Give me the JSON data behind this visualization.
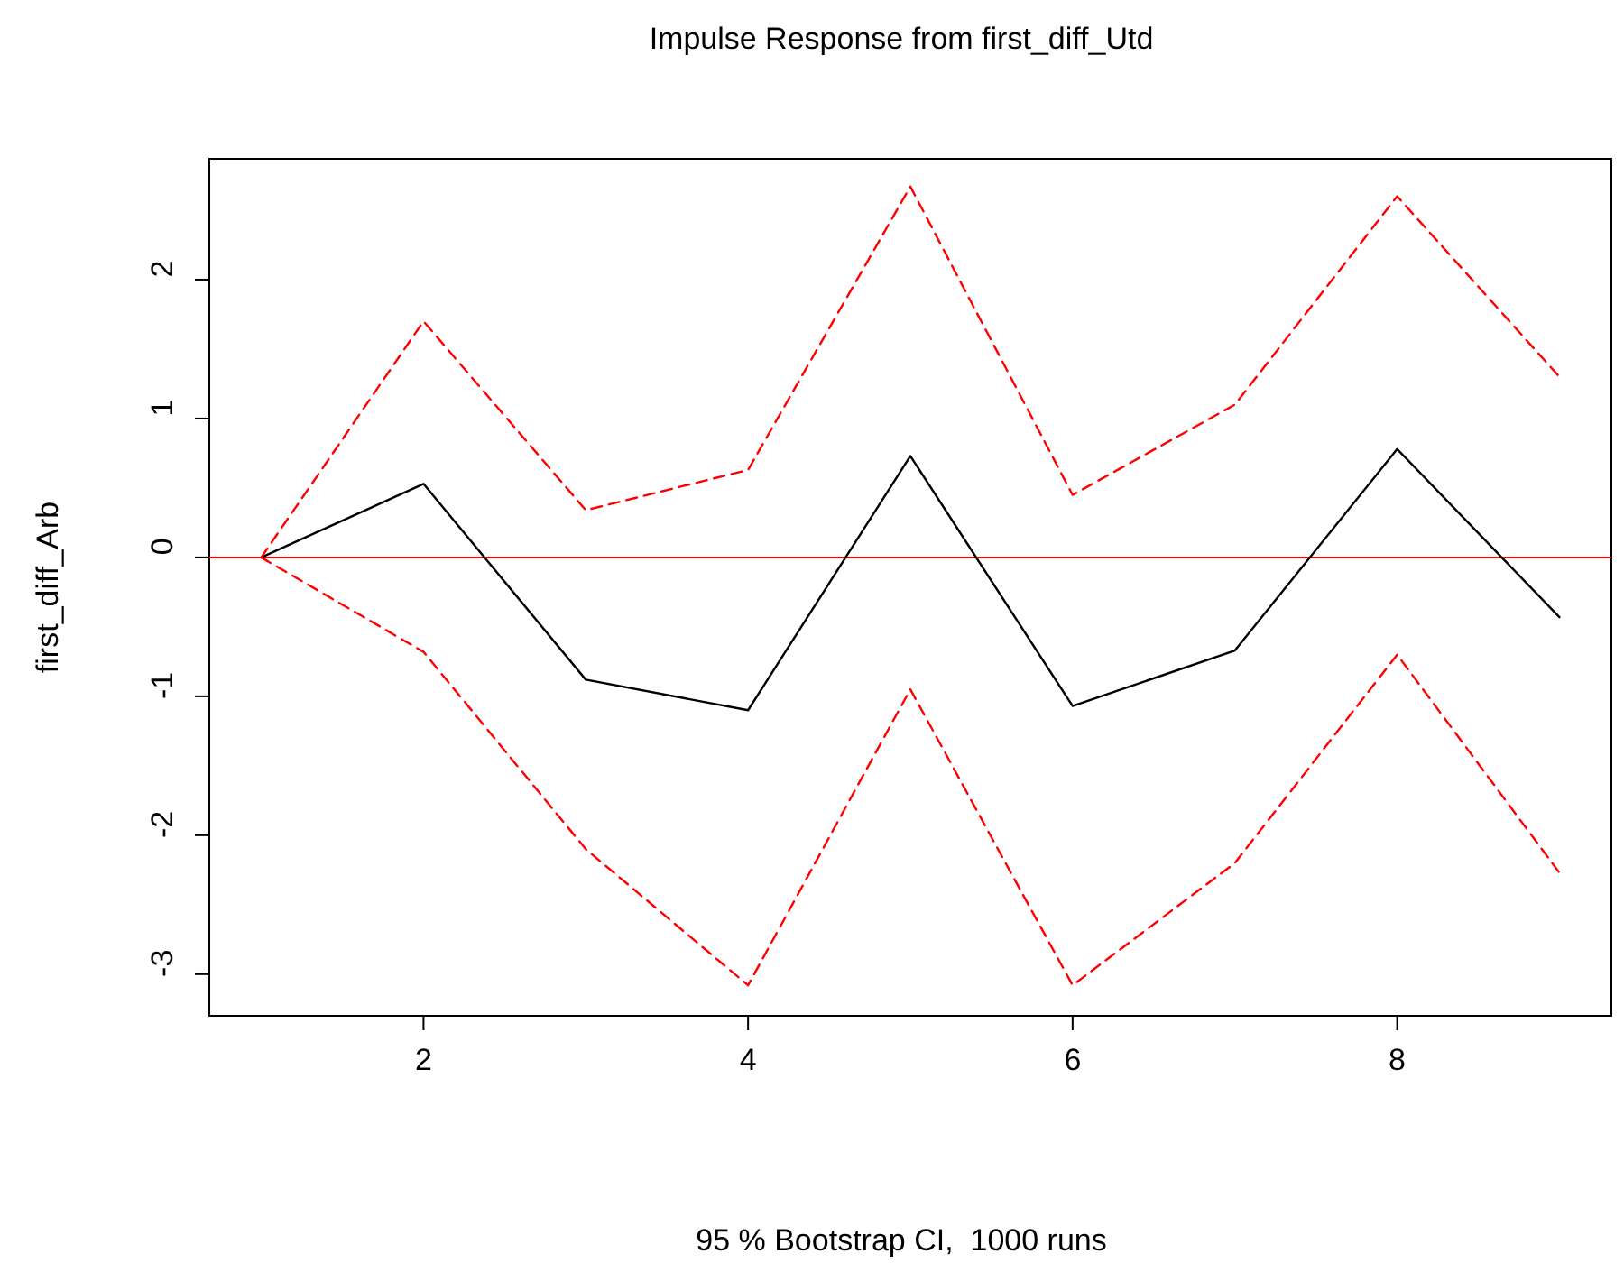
{
  "chart_data": {
    "type": "line",
    "title": "Impulse Response from first_diff_Utd",
    "xlabel": "95 % Bootstrap CI,  1000 runs",
    "ylabel": "first_diff_Arb",
    "x": [
      1,
      2,
      3,
      4,
      5,
      6,
      7,
      8,
      9
    ],
    "series": [
      {
        "color": "#000000",
        "line_style": "solid",
        "values": [
          0,
          0.53,
          -0.88,
          -1.1,
          0.73,
          -1.07,
          -0.67,
          0.78,
          -0.43
        ]
      },
      {
        "color": "#ff0000",
        "line_style": "dashed",
        "values": [
          0,
          1.7,
          0.34,
          0.63,
          2.67,
          0.45,
          1.1,
          2.6,
          1.3
        ]
      },
      {
        "color": "#ff0000",
        "line_style": "dashed",
        "values": [
          0,
          -0.68,
          -2.1,
          -3.08,
          -0.95,
          -3.08,
          -2.2,
          -0.7,
          -2.27
        ]
      }
    ],
    "xlim": [
      0.68,
      9.32
    ],
    "xticks": [
      2,
      4,
      6,
      8
    ],
    "ylim": [
      -3.3,
      2.87
    ],
    "yticks": [
      -3,
      -2,
      -1,
      0,
      1,
      2
    ],
    "ref_lines": [
      {
        "axis": "y",
        "value": 0,
        "color": "#ff0000",
        "line_style": "solid"
      }
    ],
    "tick_labels": true
  }
}
